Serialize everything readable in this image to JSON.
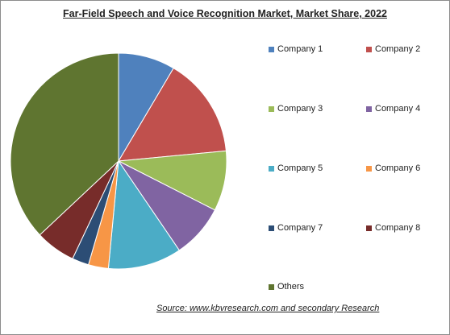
{
  "chart_data": {
    "type": "pie",
    "title": "Far-Field Speech and Voice Recognition Market, Market Share, 2022",
    "source": "Source:  www.kbvresearch.com  and secondary Research",
    "series": [
      {
        "name": "Company 1",
        "value": 8.5,
        "color": "#4f81bd"
      },
      {
        "name": "Company 2",
        "value": 15,
        "color": "#c0504d"
      },
      {
        "name": "Company 3",
        "value": 9,
        "color": "#9bbb59"
      },
      {
        "name": "Company 4",
        "value": 8,
        "color": "#8064a2"
      },
      {
        "name": "Company 5",
        "value": 11,
        "color": "#4bacc6"
      },
      {
        "name": "Company 6",
        "value": 3,
        "color": "#f79646"
      },
      {
        "name": "Company 7",
        "value": 2.5,
        "color": "#2c4d75"
      },
      {
        "name": "Company 8",
        "value": 6,
        "color": "#772c2a"
      },
      {
        "name": "Others",
        "value": 37,
        "color": "#5f7530"
      }
    ]
  }
}
